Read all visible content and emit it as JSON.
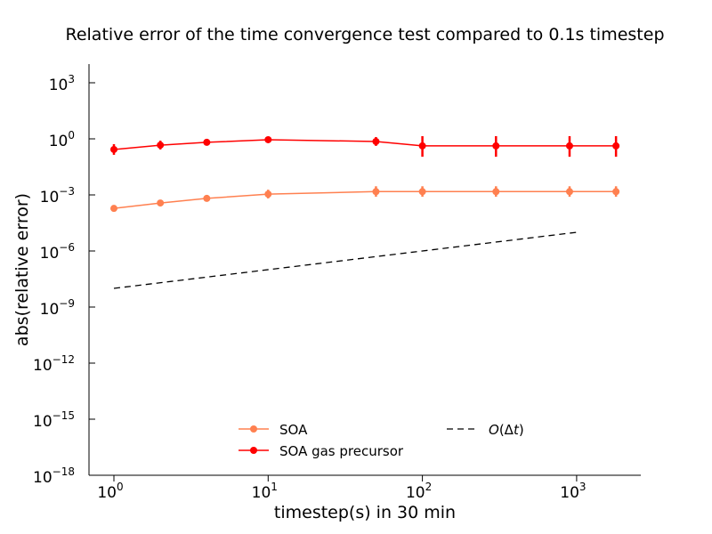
{
  "chart_data": {
    "type": "line",
    "title": "Relative error of the time convergence test compared to 0.1s timestep",
    "xlabel": "timestep(s) in 30 min",
    "ylabel": "abs(relative error)",
    "xscale": "log",
    "yscale": "log",
    "xlim": [
      0.68,
      2600
    ],
    "ylim": [
      1e-18,
      5000
    ],
    "x_ticks": [
      {
        "base": "10",
        "exp": "0"
      },
      {
        "base": "10",
        "exp": "1"
      },
      {
        "base": "10",
        "exp": "2"
      },
      {
        "base": "10",
        "exp": "3"
      }
    ],
    "x_tick_values": [
      1,
      10,
      100,
      1000
    ],
    "y_ticks": [
      {
        "base": "10",
        "exp": "3"
      },
      {
        "base": "10",
        "exp": "0"
      },
      {
        "base": "10",
        "exp": "−3"
      },
      {
        "base": "10",
        "exp": "−6"
      },
      {
        "base": "10",
        "exp": "−9"
      },
      {
        "base": "10",
        "exp": "−12"
      },
      {
        "base": "10",
        "exp": "−15"
      },
      {
        "base": "10",
        "exp": "−18"
      }
    ],
    "y_tick_values": [
      1000.0,
      1,
      0.001,
      1e-06,
      1e-09,
      1e-12,
      1e-15,
      1e-18
    ],
    "grid": false,
    "legend_placement": "lower-center",
    "x": [
      1,
      2,
      4,
      10,
      50,
      100,
      300,
      900,
      1800
    ],
    "series": [
      {
        "name": "SOA",
        "color": "#ff8050",
        "values": [
          0.00019,
          0.00037,
          0.00065,
          0.0011,
          0.0015,
          0.0015,
          0.0015,
          0.0015,
          0.0015
        ],
        "err_lower": [
          0.00015,
          0.0003,
          0.00054,
          0.00065,
          0.0008,
          0.0008,
          0.0008,
          0.0008,
          0.0008
        ],
        "err_upper": [
          0.00024,
          0.00046,
          0.00078,
          0.0019,
          0.0029,
          0.0029,
          0.0029,
          0.0029,
          0.0029
        ]
      },
      {
        "name": "SOA gas precursor",
        "color": "#ff0000",
        "values": [
          0.27,
          0.46,
          0.65,
          0.9,
          0.72,
          0.42,
          0.42,
          0.42,
          0.42
        ],
        "err_lower": [
          0.14,
          0.27,
          0.46,
          0.72,
          0.42,
          0.11,
          0.11,
          0.11,
          0.11
        ],
        "err_upper": [
          0.52,
          0.8,
          0.95,
          1.13,
          1.25,
          1.39,
          1.39,
          1.39,
          1.39
        ]
      }
    ],
    "reference_line": {
      "name": "O(Δt)",
      "legend_label": {
        "italic1": "O",
        "plain": "(Δ",
        "italic2": "t",
        "close": ")"
      },
      "color": "#000000",
      "style": "dashed",
      "x": [
        1,
        1000
      ],
      "values": [
        1e-08,
        1e-05
      ]
    }
  }
}
